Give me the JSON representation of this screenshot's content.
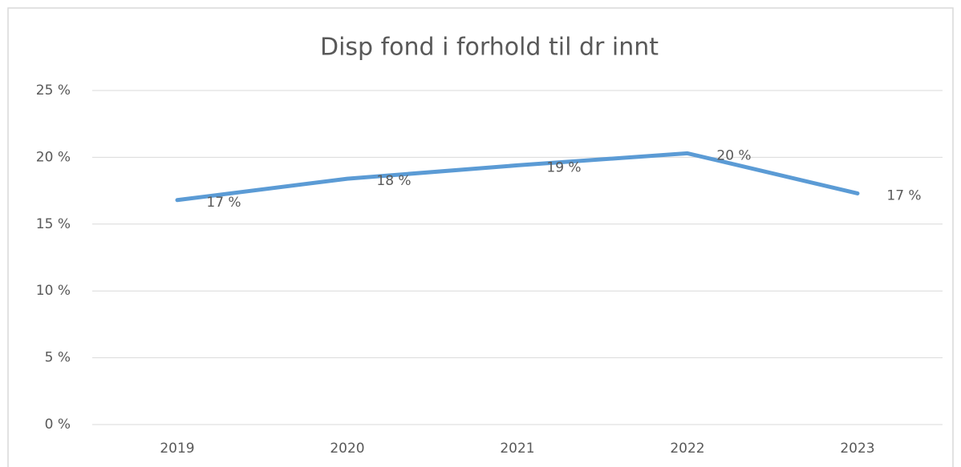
{
  "chart_data": {
    "type": "line",
    "title": "Disp fond i forhold til dr innt",
    "categories": [
      "2019",
      "2020",
      "2021",
      "2022",
      "2023"
    ],
    "series": [
      {
        "name": "Disp fond",
        "color": "#5b9bd5",
        "values": [
          16.8,
          18.4,
          19.4,
          20.3,
          17.3
        ],
        "value_labels": [
          "17 %",
          "18 %",
          "19 %",
          "20 %",
          "17 %"
        ]
      }
    ],
    "ylim": [
      0,
      25
    ],
    "yticks": [
      {
        "value": 0,
        "label": "0 %"
      },
      {
        "value": 5,
        "label": "5 %"
      },
      {
        "value": 10,
        "label": "10 %"
      },
      {
        "value": 15,
        "label": "15 %"
      },
      {
        "value": 20,
        "label": "20 %"
      },
      {
        "value": 25,
        "label": "25 %"
      }
    ],
    "grid": true
  }
}
